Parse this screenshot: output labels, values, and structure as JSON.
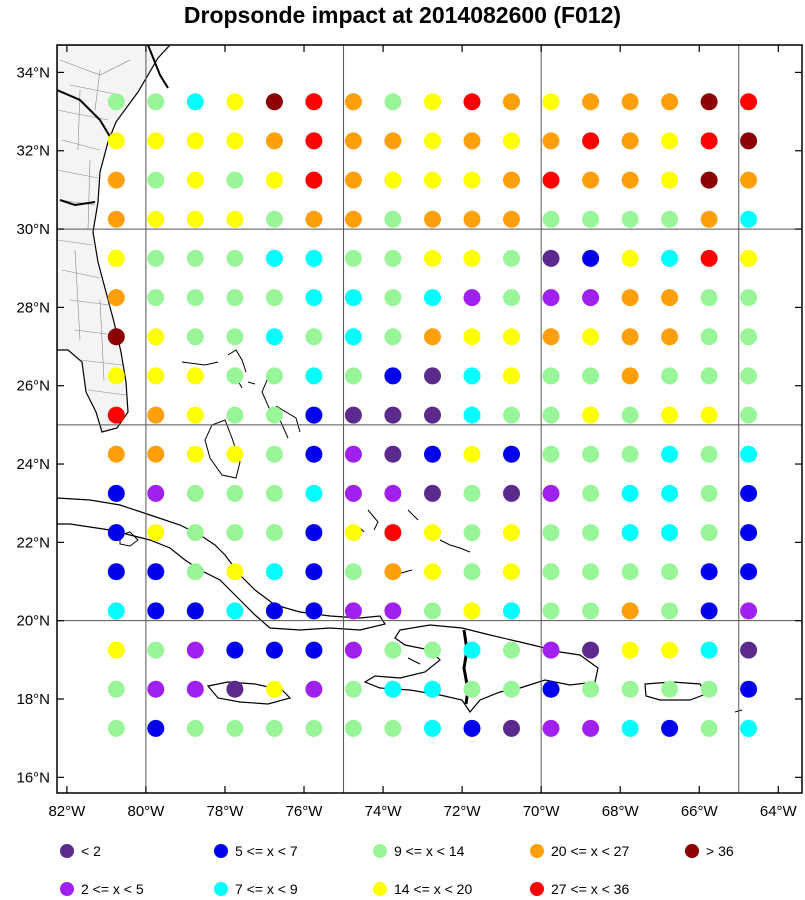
{
  "title": "Dropsonde impact at 2014082600 (F012)",
  "axes": {
    "lat_labels": [
      "16°N",
      "18°N",
      "20°N",
      "22°N",
      "24°N",
      "26°N",
      "28°N",
      "30°N",
      "32°N",
      "34°N"
    ],
    "lat_values": [
      16,
      18,
      20,
      22,
      24,
      26,
      28,
      30,
      32,
      34
    ],
    "lon_labels": [
      "82°W",
      "80°W",
      "78°W",
      "76°W",
      "74°W",
      "72°W",
      "70°W",
      "68°W",
      "66°W",
      "64°W"
    ],
    "lon_values": [
      -82,
      -80,
      -78,
      -76,
      -74,
      -72,
      -70,
      -68,
      -66,
      -64
    ],
    "lon_range": [
      -82.25,
      -63.4
    ],
    "lat_range": [
      15.6,
      34.7
    ],
    "grid_lons": [
      -80,
      -75,
      -70,
      -65
    ],
    "grid_lats": [
      20,
      25,
      30
    ]
  },
  "legend": [
    {
      "label": "<  2",
      "color": "#5c2a8c"
    },
    {
      "label": "5 <= x <  7",
      "color": "#0000ee"
    },
    {
      "label": "9 <= x < 14",
      "color": "#98f598"
    },
    {
      "label": "20 <= x < 27",
      "color": "#ff9f0a"
    },
    {
      "label": "> 36",
      "color": "#8b0000"
    },
    {
      "label": "2 <= x <  5",
      "color": "#a020f0"
    },
    {
      "label": "7 <= x <  9",
      "color": "#00ffff"
    },
    {
      "label": "14 <= x < 20",
      "color": "#ffff00"
    },
    {
      "label": "27 <= x < 36",
      "color": "#ff0000"
    }
  ],
  "chart_data": {
    "type": "scatter",
    "category_order": [
      "<2",
      "2-5",
      "5-7",
      "7-9",
      "9-14",
      "14-20",
      "20-27",
      "27-36",
      ">36"
    ],
    "grid_lons": [
      -80.75,
      -79.75,
      -78.75,
      -77.75,
      -76.75,
      -75.75,
      -74.75,
      -73.75,
      -72.75,
      -71.75,
      -70.75,
      -69.75,
      -68.75,
      -67.75,
      -66.75,
      -65.75,
      -64.75
    ],
    "rows": [
      {
        "lat": 33.25,
        "cats": [
          4,
          4,
          3,
          5,
          8,
          7,
          6,
          4,
          5,
          7,
          6,
          5,
          6,
          6,
          6,
          8,
          7
        ]
      },
      {
        "lat": 32.25,
        "cats": [
          5,
          5,
          5,
          5,
          6,
          7,
          6,
          6,
          5,
          6,
          5,
          6,
          7,
          6,
          5,
          7,
          8
        ]
      },
      {
        "lat": 31.25,
        "cats": [
          6,
          4,
          5,
          4,
          5,
          7,
          6,
          5,
          5,
          5,
          6,
          7,
          6,
          6,
          5,
          8,
          6
        ]
      },
      {
        "lat": 30.25,
        "cats": [
          6,
          5,
          5,
          5,
          4,
          6,
          6,
          4,
          6,
          6,
          6,
          4,
          4,
          4,
          4,
          6,
          3
        ]
      },
      {
        "lat": 29.25,
        "cats": [
          5,
          4,
          4,
          4,
          3,
          3,
          4,
          4,
          5,
          5,
          4,
          0,
          2,
          5,
          3,
          7,
          5
        ]
      },
      {
        "lat": 28.25,
        "cats": [
          6,
          4,
          4,
          4,
          4,
          3,
          3,
          4,
          3,
          1,
          4,
          1,
          1,
          6,
          6,
          4,
          4
        ]
      },
      {
        "lat": 27.25,
        "cats": [
          8,
          5,
          4,
          4,
          3,
          4,
          3,
          4,
          6,
          5,
          5,
          6,
          5,
          6,
          6,
          4,
          4
        ]
      },
      {
        "lat": 26.25,
        "cats": [
          5,
          5,
          5,
          4,
          4,
          3,
          4,
          2,
          0,
          3,
          5,
          4,
          4,
          6,
          4,
          4,
          4
        ]
      },
      {
        "lat": 25.25,
        "cats": [
          7,
          6,
          5,
          4,
          4,
          2,
          0,
          0,
          0,
          3,
          4,
          4,
          5,
          4,
          5,
          5,
          4
        ]
      },
      {
        "lat": 24.25,
        "cats": [
          6,
          6,
          5,
          5,
          4,
          2,
          1,
          0,
          2,
          5,
          2,
          4,
          4,
          4,
          3,
          4,
          3
        ]
      },
      {
        "lat": 23.25,
        "cats": [
          2,
          1,
          4,
          4,
          4,
          3,
          1,
          1,
          0,
          4,
          0,
          1,
          4,
          3,
          3,
          4,
          2
        ]
      },
      {
        "lat": 22.25,
        "cats": [
          2,
          5,
          4,
          4,
          4,
          2,
          5,
          7,
          5,
          4,
          5,
          4,
          4,
          3,
          3,
          4,
          2
        ]
      },
      {
        "lat": 21.25,
        "cats": [
          2,
          2,
          4,
          5,
          3,
          2,
          4,
          6,
          5,
          4,
          5,
          4,
          4,
          4,
          4,
          2,
          2
        ]
      },
      {
        "lat": 20.25,
        "cats": [
          3,
          2,
          2,
          3,
          2,
          2,
          1,
          1,
          4,
          5,
          3,
          4,
          4,
          6,
          4,
          2,
          1
        ]
      },
      {
        "lat": 19.25,
        "cats": [
          5,
          4,
          1,
          2,
          2,
          2,
          1,
          4,
          4,
          3,
          4,
          1,
          0,
          5,
          5,
          3,
          0
        ]
      },
      {
        "lat": 18.25,
        "cats": [
          4,
          1,
          1,
          0,
          5,
          1,
          4,
          3,
          3,
          4,
          4,
          2,
          4,
          4,
          4,
          4,
          2
        ]
      },
      {
        "lat": 17.25,
        "cats": [
          4,
          2,
          4,
          4,
          4,
          4,
          4,
          4,
          3,
          2,
          0,
          1,
          1,
          3,
          2,
          4,
          3
        ]
      }
    ]
  }
}
